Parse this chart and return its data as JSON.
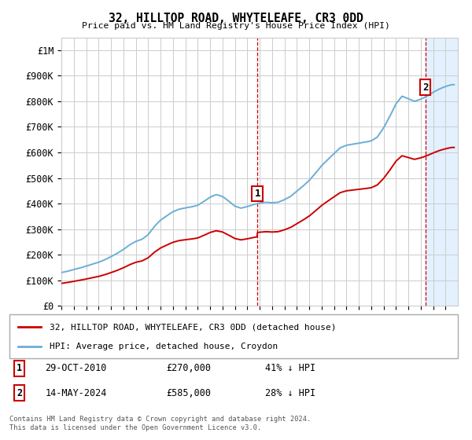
{
  "title": "32, HILLTOP ROAD, WHYTELEAFE, CR3 0DD",
  "subtitle": "Price paid vs. HM Land Registry's House Price Index (HPI)",
  "hpi_label": "HPI: Average price, detached house, Croydon",
  "property_label": "32, HILLTOP ROAD, WHYTELEAFE, CR3 0DD (detached house)",
  "footer_line1": "Contains HM Land Registry data © Crown copyright and database right 2024.",
  "footer_line2": "This data is licensed under the Open Government Licence v3.0.",
  "sale1_date": "29-OCT-2010",
  "sale1_price": 270000,
  "sale1_hpi_diff": "41% ↓ HPI",
  "sale1_x": 2010.83,
  "sale2_date": "14-MAY-2024",
  "sale2_price": 585000,
  "sale2_hpi_diff": "28% ↓ HPI",
  "sale2_x": 2024.37,
  "ylim": [
    0,
    1050000
  ],
  "yticks": [
    0,
    100000,
    200000,
    300000,
    400000,
    500000,
    600000,
    700000,
    800000,
    900000,
    1000000
  ],
  "ytick_labels": [
    "£0",
    "£100K",
    "£200K",
    "£300K",
    "£400K",
    "£500K",
    "£600K",
    "£700K",
    "£800K",
    "£900K",
    "£1M"
  ],
  "hpi_color": "#6baed6",
  "property_color": "#cc0000",
  "background_color": "#ffffff",
  "grid_color": "#cccccc",
  "shaded_region_color": "#ddeeff",
  "xmin": 1995,
  "xmax": 2027
}
